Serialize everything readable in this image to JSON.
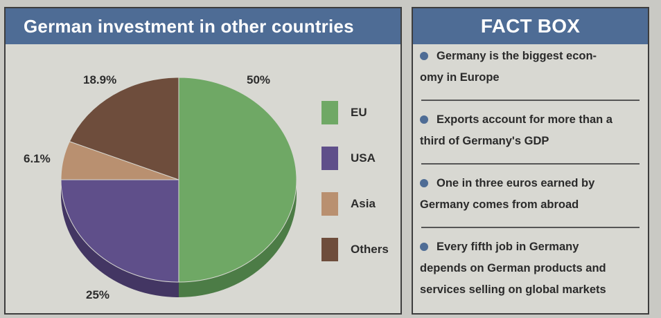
{
  "chart_data": {
    "type": "pie",
    "title": "German investment in other countries",
    "categories": [
      "EU",
      "USA",
      "Asia",
      "Others"
    ],
    "values": [
      50,
      25,
      6.1,
      18.9
    ],
    "value_labels": [
      "50%",
      "25%",
      "6.1%",
      "18.9%"
    ],
    "colors": [
      "#6fa865",
      "#5f4f8a",
      "#b99070",
      "#6e4d3c"
    ],
    "side_colors": [
      "#4c7c46",
      "#433663",
      "#8d6a52",
      "#4f382d"
    ],
    "legend_position": "right"
  },
  "fact_box": {
    "title": "FACT BOX",
    "facts": [
      {
        "line1": "Germany is the biggest econ-",
        "line2": "omy in Europe"
      },
      {
        "line1": "Exports account for more than a",
        "line2": "third of Germany's GDP"
      },
      {
        "line1": "One in three euros earned by",
        "line2": "Germany comes from abroad"
      },
      {
        "line1": "Every fifth job in Germany",
        "line2": "depends on German products and",
        "line3": "services selling on global markets"
      }
    ]
  }
}
